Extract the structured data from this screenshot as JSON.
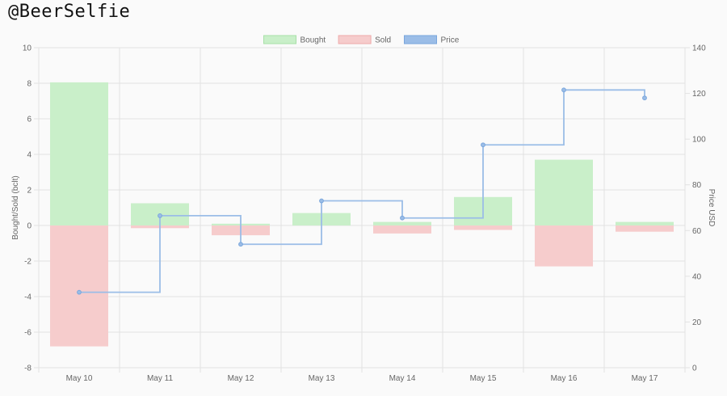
{
  "header": {
    "title": "@BeerSelfie"
  },
  "chart_data": {
    "type": "bar",
    "categories": [
      "May 10",
      "May 11",
      "May 12",
      "May 13",
      "May 14",
      "May 15",
      "May 16",
      "May 17"
    ],
    "series": [
      {
        "name": "Bought",
        "kind": "bar",
        "axis": "left",
        "color": "#c9efc9",
        "values": [
          8.05,
          1.25,
          0.1,
          0.7,
          0.2,
          1.6,
          3.7,
          0.2
        ]
      },
      {
        "name": "Sold",
        "kind": "bar",
        "axis": "left",
        "color": "#f6cccc",
        "values": [
          -6.8,
          -0.15,
          -0.55,
          0,
          -0.45,
          -0.25,
          -2.3,
          -0.35
        ]
      },
      {
        "name": "Price",
        "kind": "stepped-line",
        "axis": "right",
        "color": "#9bbde7",
        "values": [
          33,
          66.5,
          54,
          73,
          65.5,
          97.5,
          121.5,
          118
        ]
      }
    ],
    "y_left": {
      "label": "Bought/Sold (bclt)",
      "ylim": [
        -8,
        10
      ],
      "ticks": [
        "10",
        "8",
        "6",
        "4",
        "2",
        "0",
        "-2",
        "-4",
        "-6",
        "-8"
      ]
    },
    "y_right": {
      "label": "Price USD",
      "ylim": [
        0,
        140
      ],
      "ticks": [
        "140",
        "120",
        "100",
        "80",
        "60",
        "40",
        "20",
        "0"
      ]
    },
    "legend": {
      "placement": "top-center",
      "items": [
        {
          "label": "Bought",
          "color": "#c9efc9",
          "border": "#a8e0a8"
        },
        {
          "label": "Sold",
          "color": "#f6cccc",
          "border": "#eeaaaa"
        },
        {
          "label": "Price",
          "color": "#9bbde7",
          "border": "#7aa6dc"
        }
      ]
    },
    "grid": true
  }
}
